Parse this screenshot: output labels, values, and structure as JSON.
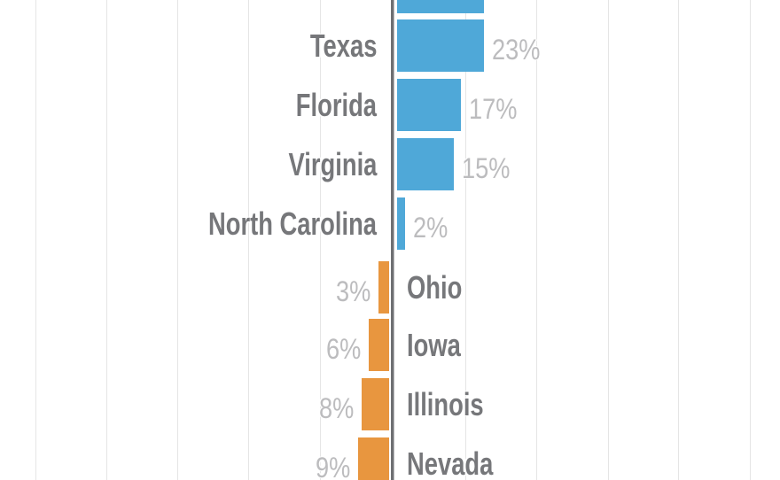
{
  "chart_data": {
    "type": "bar",
    "orientation": "horizontal",
    "diverging": true,
    "unit": "%",
    "title": "",
    "legend": "none",
    "grid": "vertical gridlines on, no tick labels visible",
    "baseline": "dark vertical axis at chart center",
    "rows": [
      {
        "label": "",
        "pct": "",
        "value": 23,
        "side": "right",
        "cut_off_top": true
      },
      {
        "label": "Texas",
        "pct": "23%",
        "value": 23,
        "side": "right"
      },
      {
        "label": "Florida",
        "pct": "17%",
        "value": 17,
        "side": "right"
      },
      {
        "label": "Virginia",
        "pct": "15%",
        "value": 15,
        "side": "right"
      },
      {
        "label": "North Carolina",
        "pct": "2%",
        "value": 2,
        "side": "right"
      },
      {
        "label": "Ohio",
        "pct": "3%",
        "value": 3,
        "side": "left"
      },
      {
        "label": "Iowa",
        "pct": "6%",
        "value": 6,
        "side": "left"
      },
      {
        "label": "Illinois",
        "pct": "8%",
        "value": 8,
        "side": "left"
      },
      {
        "label": "Nevada",
        "pct": "9%",
        "value": 9,
        "side": "left",
        "cut_off_bottom": true
      }
    ],
    "colors": {
      "bar_right": "#4FA8D8",
      "bar_left": "#E8963F",
      "state_label": "#76777A",
      "value_label": "#BCBCBE",
      "axis": "#6F7073",
      "gridline": "#E5E5E5",
      "background": "#FFFFFF"
    }
  }
}
